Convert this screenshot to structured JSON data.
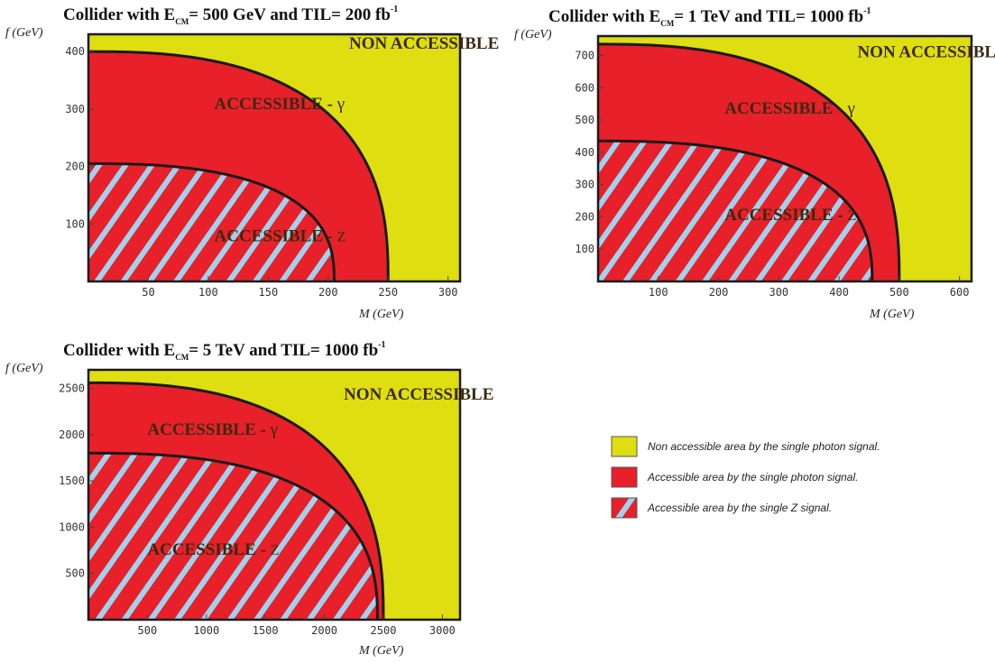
{
  "colors": {
    "non_accessible": "#dede10",
    "accessible_gamma": "#e8202a",
    "stripe_z": "#9fd2ee",
    "boundary": "#1a1a1a"
  },
  "chart_data": [
    {
      "type": "area",
      "title": {
        "pre": "Collider with E",
        "sub": "CM",
        "mid": "= 500 GeV and TIL= 200 fb",
        "sup": "-1"
      },
      "xlabel": "M (GeV)",
      "ylabel": "f (GeV)",
      "xlim": [
        0,
        310
      ],
      "ylim": [
        0,
        430
      ],
      "xticks": [
        50,
        100,
        150,
        200,
        250,
        300
      ],
      "yticks": [
        100,
        200,
        300,
        400
      ],
      "regions": [
        {
          "name": "NON ACCESSIBLE",
          "fill": "non_accessible"
        },
        {
          "name": "ACCESSIBLE - γ",
          "fill": "accessible_gamma",
          "boundary": {
            "f_max": 400,
            "M_max": 250
          }
        },
        {
          "name": "ACCESSIBLE - Z",
          "fill": "stripe_z",
          "boundary": {
            "f_max": 205,
            "M_max": 205
          }
        }
      ],
      "labels": {
        "non_accessible": "NON ACCESSIBLE",
        "gamma": {
          "text": "ACCESSIBLE - ",
          "symbol": "γ",
          "at": [
            105,
            300
          ]
        },
        "z": {
          "text": "ACCESSIBLE - ",
          "symbol": "Z",
          "at": [
            105,
            70
          ]
        },
        "non_at": [
          280,
          405
        ]
      }
    },
    {
      "type": "area",
      "title": {
        "pre": "Collider with E",
        "sub": "CM",
        "mid": "= 1 TeV and TIL= 1000 fb",
        "sup": "-1"
      },
      "xlabel": "M (GeV)",
      "ylabel": "f (GeV)",
      "xlim": [
        0,
        620
      ],
      "ylim": [
        0,
        760
      ],
      "xticks": [
        100,
        200,
        300,
        400,
        500,
        600
      ],
      "yticks": [
        100,
        200,
        300,
        400,
        500,
        600,
        700
      ],
      "regions": [
        {
          "name": "NON ACCESSIBLE",
          "fill": "non_accessible"
        },
        {
          "name": "ACCESSIBLE - γ",
          "fill": "accessible_gamma",
          "boundary": {
            "f_max": 735,
            "M_max": 500
          }
        },
        {
          "name": "ACCESSIBLE - Z",
          "fill": "stripe_z",
          "boundary": {
            "f_max": 435,
            "M_max": 455
          }
        }
      ],
      "labels": {
        "non_accessible": "NON ACCESSIBLE",
        "gamma": {
          "text": "ACCESSIBLE - ",
          "symbol": "γ",
          "at": [
            210,
            520
          ]
        },
        "z": {
          "text": "ACCESSIBLE - ",
          "symbol": "Z",
          "at": [
            210,
            190
          ]
        },
        "non_at": [
          555,
          695
        ]
      }
    },
    {
      "type": "area",
      "title": {
        "pre": "Collider with E",
        "sub": "CM",
        "mid": "= 5 TeV and TIL= 1000 fb",
        "sup": "-1"
      },
      "xlabel": "M (GeV)",
      "ylabel": "f (GeV)",
      "xlim": [
        0,
        3150
      ],
      "ylim": [
        0,
        2700
      ],
      "xticks": [
        500,
        1000,
        1500,
        2000,
        2500,
        3000
      ],
      "yticks": [
        500,
        1000,
        1500,
        2000,
        2500
      ],
      "regions": [
        {
          "name": "NON ACCESSIBLE",
          "fill": "non_accessible"
        },
        {
          "name": "ACCESSIBLE - γ",
          "fill": "accessible_gamma",
          "boundary": {
            "f_max": 2560,
            "M_max": 2500
          }
        },
        {
          "name": "ACCESSIBLE - Z",
          "fill": "stripe_z",
          "boundary": {
            "f_max": 1800,
            "M_max": 2450
          }
        }
      ],
      "labels": {
        "non_accessible": "NON ACCESSIBLE",
        "gamma": {
          "text": "ACCESSIBLE - ",
          "symbol": "γ",
          "at": [
            500,
            2000
          ]
        },
        "z": {
          "text": "ACCESSIBLE - ",
          "symbol": "Z",
          "at": [
            500,
            700
          ]
        },
        "non_at": [
          2800,
          2380
        ]
      }
    }
  ],
  "legend": [
    {
      "fill": "non_accessible",
      "label": "Non accessible area by the single photon signal."
    },
    {
      "fill": "accessible_gamma",
      "label": "Accessible area by  the single photon signal."
    },
    {
      "fill": "stripe_z",
      "label": "Accessible area  by  the single Z signal."
    }
  ]
}
